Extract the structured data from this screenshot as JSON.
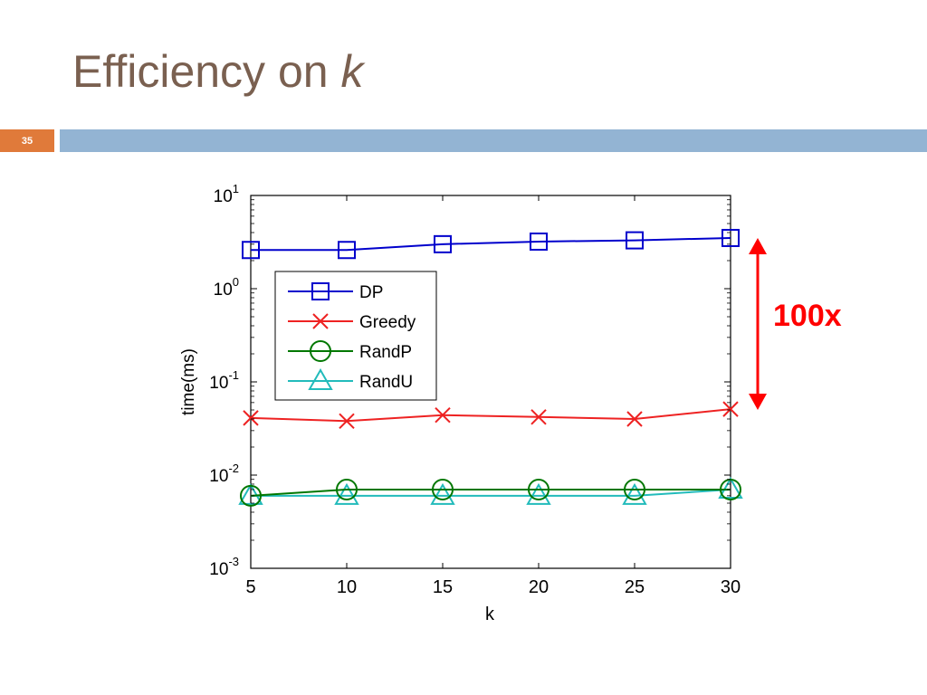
{
  "slide": {
    "title": "Efficiency on ",
    "title_var": "k",
    "page_number": "35"
  },
  "colors": {
    "title": "#7a6050",
    "bar": "#93b4d3",
    "badge": "#e07a3a",
    "annotation": "#ff0000"
  },
  "annotation": {
    "text": "100x",
    "arrow_icon": "double-vertical-arrow-icon"
  },
  "chart_data": {
    "type": "line",
    "xlabel": "k",
    "ylabel": "time(ms)",
    "x": [
      5,
      10,
      15,
      20,
      25,
      30
    ],
    "xlim": [
      5,
      30
    ],
    "ylim": [
      0.001,
      10
    ],
    "yscale": "log",
    "xticks": [
      "5",
      "10",
      "15",
      "20",
      "25",
      "30"
    ],
    "yticks": [
      {
        "base": "10",
        "exp": "1",
        "value": 10
      },
      {
        "base": "10",
        "exp": "0",
        "value": 1
      },
      {
        "base": "10",
        "exp": "-1",
        "value": 0.1
      },
      {
        "base": "10",
        "exp": "-2",
        "value": 0.01
      },
      {
        "base": "10",
        "exp": "-3",
        "value": 0.001
      }
    ],
    "grid": false,
    "legend": "top-left",
    "series": [
      {
        "name": "DP",
        "color": "#0000cc",
        "marker": "square",
        "values": [
          2.6,
          2.6,
          3.0,
          3.2,
          3.3,
          3.5
        ]
      },
      {
        "name": "Greedy",
        "color": "#ee2222",
        "marker": "x",
        "values": [
          0.041,
          0.038,
          0.044,
          0.042,
          0.04,
          0.051
        ]
      },
      {
        "name": "RandP",
        "color": "#007700",
        "marker": "circle",
        "values": [
          0.006,
          0.007,
          0.007,
          0.007,
          0.007,
          0.007
        ]
      },
      {
        "name": "RandU",
        "color": "#22bbbb",
        "marker": "triangle",
        "values": [
          0.006,
          0.006,
          0.006,
          0.006,
          0.006,
          0.007
        ]
      }
    ]
  }
}
